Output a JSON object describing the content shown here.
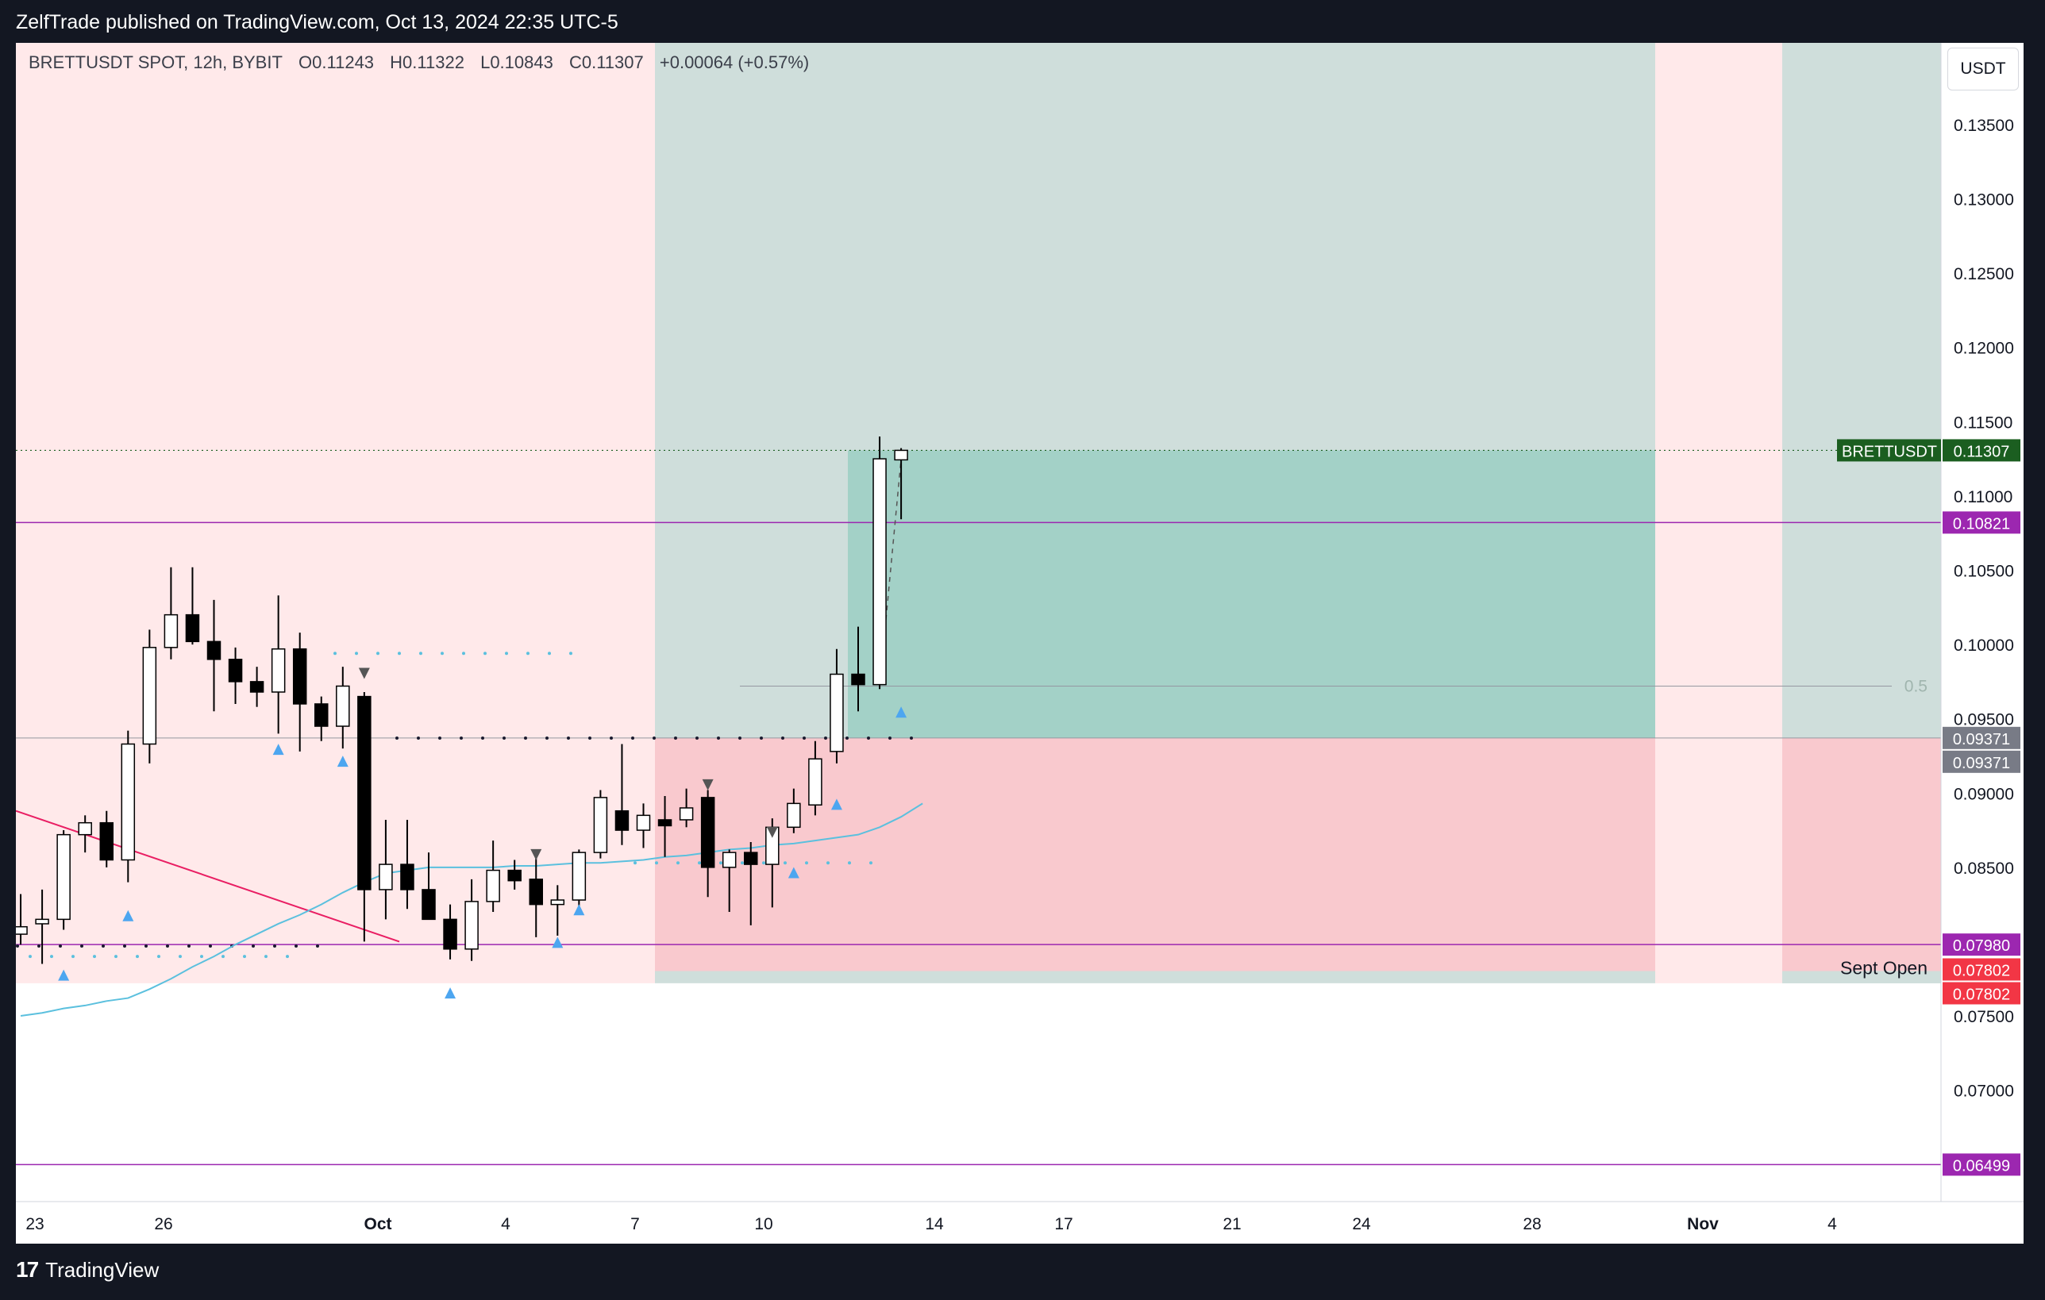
{
  "header": {
    "publish_text": "ZelfTrade published on TradingView.com, Oct 13, 2024 22:35 UTC-5"
  },
  "legend": {
    "symbol": "BRETTUSDT SPOT, 12h, BYBIT",
    "open": "O0.11243",
    "high": "H0.11322",
    "low": "L0.10843",
    "close": "C0.11307",
    "change": "+0.00064 (+0.57%)"
  },
  "price_axis": {
    "currency": "USDT",
    "ticks": [
      "0.13500",
      "0.13000",
      "0.12500",
      "0.12000",
      "0.11500",
      "0.11000",
      "0.10500",
      "0.10000",
      "0.09500",
      "0.09000",
      "0.08500",
      "0.07500",
      "0.07000"
    ]
  },
  "time_axis": {
    "labels": [
      "23",
      "26",
      "Oct",
      "4",
      "7",
      "10",
      "14",
      "17",
      "21",
      "24",
      "28",
      "Nov",
      "4"
    ]
  },
  "price_labels": [
    {
      "text": "BRETTUSDT",
      "value": "0.11307",
      "color": "#1b5e20"
    },
    {
      "text": "",
      "value": "0.10821",
      "color": "#9c27b0"
    },
    {
      "text": "",
      "value": "0.09371",
      "color": "#787b86"
    },
    {
      "text": "",
      "value": "0.09371",
      "color": "#787b86"
    },
    {
      "text": "",
      "value": "0.07980",
      "color": "#9c27b0"
    },
    {
      "text": "",
      "value": "0.07802",
      "color": "#f23645"
    },
    {
      "text": "",
      "value": "0.07802",
      "color": "#f23645"
    },
    {
      "text": "",
      "value": "0.06499",
      "color": "#9c27b0"
    }
  ],
  "annotations": {
    "sept_open": "Sept Open",
    "fib_level": "0.5"
  },
  "footer": {
    "brand": "TradingView"
  },
  "colors": {
    "up_body": "#ffffff",
    "down_body": "#000000",
    "wick": "#000000",
    "ma_line": "#5bc0de",
    "trend_line": "#e91e63",
    "purple_line": "#9c27b0",
    "zone_pink": "#ffe9ea",
    "zone_teal": "#cfdedb",
    "profit_box": "#a3d1c7",
    "loss_box": "#f9c9ce"
  },
  "chart_data": {
    "type": "candlestick",
    "title": "BRETTUSDT SPOT, 12h, BYBIT",
    "ylim": [
      0.0625,
      0.1405
    ],
    "candles": [
      {
        "o": 0.0797,
        "h": 0.081,
        "l": 0.0782,
        "c": 0.0805
      },
      {
        "o": 0.0805,
        "h": 0.0832,
        "l": 0.0798,
        "c": 0.081
      },
      {
        "o": 0.0812,
        "h": 0.0835,
        "l": 0.0785,
        "c": 0.0815
      },
      {
        "o": 0.0815,
        "h": 0.0875,
        "l": 0.0808,
        "c": 0.0872
      },
      {
        "o": 0.0872,
        "h": 0.0885,
        "l": 0.086,
        "c": 0.088
      },
      {
        "o": 0.088,
        "h": 0.0888,
        "l": 0.085,
        "c": 0.0855
      },
      {
        "o": 0.0855,
        "h": 0.0942,
        "l": 0.084,
        "c": 0.0933
      },
      {
        "o": 0.0933,
        "h": 0.101,
        "l": 0.092,
        "c": 0.0998
      },
      {
        "o": 0.0998,
        "h": 0.1052,
        "l": 0.099,
        "c": 0.102
      },
      {
        "o": 0.102,
        "h": 0.1052,
        "l": 0.1,
        "c": 0.1002
      },
      {
        "o": 0.1002,
        "h": 0.103,
        "l": 0.0955,
        "c": 0.099
      },
      {
        "o": 0.099,
        "h": 0.0998,
        "l": 0.096,
        "c": 0.0975
      },
      {
        "o": 0.0975,
        "h": 0.0985,
        "l": 0.0958,
        "c": 0.0968
      },
      {
        "o": 0.0968,
        "h": 0.1033,
        "l": 0.094,
        "c": 0.0997
      },
      {
        "o": 0.0997,
        "h": 0.1008,
        "l": 0.0928,
        "c": 0.096
      },
      {
        "o": 0.096,
        "h": 0.0965,
        "l": 0.0935,
        "c": 0.0945
      },
      {
        "o": 0.0945,
        "h": 0.0985,
        "l": 0.093,
        "c": 0.0972
      },
      {
        "o": 0.0965,
        "h": 0.0968,
        "l": 0.08,
        "c": 0.0835
      },
      {
        "o": 0.0835,
        "h": 0.0882,
        "l": 0.0815,
        "c": 0.0852
      },
      {
        "o": 0.0852,
        "h": 0.0882,
        "l": 0.0822,
        "c": 0.0835
      },
      {
        "o": 0.0835,
        "h": 0.086,
        "l": 0.0815,
        "c": 0.0815
      },
      {
        "o": 0.0815,
        "h": 0.0825,
        "l": 0.0788,
        "c": 0.0795
      },
      {
        "o": 0.0795,
        "h": 0.0842,
        "l": 0.0787,
        "c": 0.0827
      },
      {
        "o": 0.0827,
        "h": 0.0868,
        "l": 0.082,
        "c": 0.0848
      },
      {
        "o": 0.0848,
        "h": 0.0855,
        "l": 0.0835,
        "c": 0.0841
      },
      {
        "o": 0.0842,
        "h": 0.0858,
        "l": 0.0803,
        "c": 0.0825
      },
      {
        "o": 0.0825,
        "h": 0.0838,
        "l": 0.0804,
        "c": 0.0828
      },
      {
        "o": 0.0828,
        "h": 0.0862,
        "l": 0.0819,
        "c": 0.086
      },
      {
        "o": 0.086,
        "h": 0.0902,
        "l": 0.0856,
        "c": 0.0897
      },
      {
        "o": 0.0888,
        "h": 0.0933,
        "l": 0.0865,
        "c": 0.0875
      },
      {
        "o": 0.0875,
        "h": 0.0893,
        "l": 0.0863,
        "c": 0.0885
      },
      {
        "o": 0.0882,
        "h": 0.0898,
        "l": 0.0857,
        "c": 0.0878
      },
      {
        "o": 0.0882,
        "h": 0.0903,
        "l": 0.0877,
        "c": 0.089
      },
      {
        "o": 0.0897,
        "h": 0.0902,
        "l": 0.083,
        "c": 0.085
      },
      {
        "o": 0.085,
        "h": 0.0862,
        "l": 0.082,
        "c": 0.086
      },
      {
        "o": 0.086,
        "h": 0.0867,
        "l": 0.0811,
        "c": 0.0852
      },
      {
        "o": 0.0852,
        "h": 0.0883,
        "l": 0.0823,
        "c": 0.0877
      },
      {
        "o": 0.0877,
        "h": 0.0903,
        "l": 0.0873,
        "c": 0.0893
      },
      {
        "o": 0.0892,
        "h": 0.0935,
        "l": 0.0885,
        "c": 0.0923
      },
      {
        "o": 0.0928,
        "h": 0.0997,
        "l": 0.092,
        "c": 0.098
      },
      {
        "o": 0.098,
        "h": 0.1012,
        "l": 0.0955,
        "c": 0.0973
      },
      {
        "o": 0.0973,
        "h": 0.114,
        "l": 0.097,
        "c": 0.1125
      },
      {
        "o": 0.11243,
        "h": 0.11322,
        "l": 0.10843,
        "c": 0.11307
      }
    ],
    "series": [
      {
        "values": [
          0.075,
          0.0752,
          0.0755,
          0.0757,
          0.076,
          0.0762,
          0.0768,
          0.0775,
          0.0783,
          0.079,
          0.0798,
          0.0805,
          0.0812,
          0.0818,
          0.0825,
          0.0833,
          0.084,
          0.0846,
          0.0848,
          0.085,
          0.085,
          0.085,
          0.085,
          0.0851,
          0.0851,
          0.0852,
          0.0853,
          0.0853,
          0.0854,
          0.0855,
          0.0857,
          0.0858,
          0.086,
          0.0862,
          0.0863,
          0.0865,
          0.0866,
          0.0868,
          0.087,
          0.0872,
          0.0877,
          0.0884,
          0.0893
        ]
      }
    ],
    "levels": [
      0.10821,
      0.09371,
      0.0798,
      0.07802,
      0.06499
    ],
    "last_price": 0.11307
  }
}
